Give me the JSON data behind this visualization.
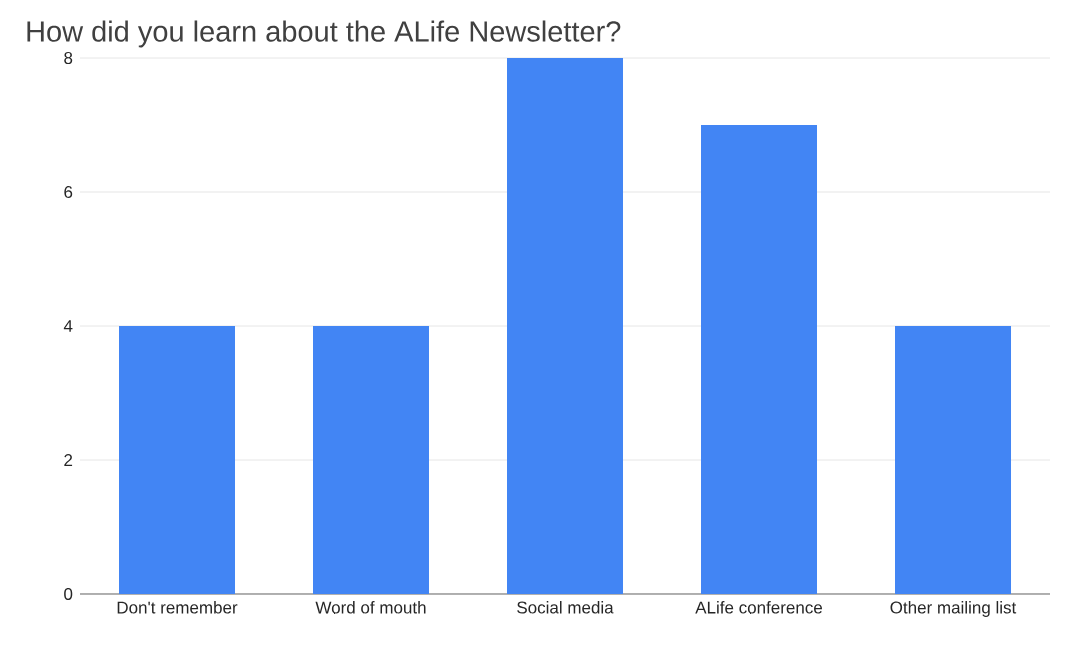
{
  "chart_data": {
    "type": "bar",
    "title": "How did you learn about the ALife Newsletter?",
    "categories": [
      "Don't remember",
      "Word of mouth",
      "Social media",
      "ALife conference",
      "Other mailing list"
    ],
    "values": [
      4,
      4,
      8,
      7,
      4
    ],
    "color": "#4285f4",
    "ylim": [
      0,
      8
    ],
    "yticks": [
      0,
      2,
      4,
      6,
      8
    ],
    "grid": "y"
  }
}
